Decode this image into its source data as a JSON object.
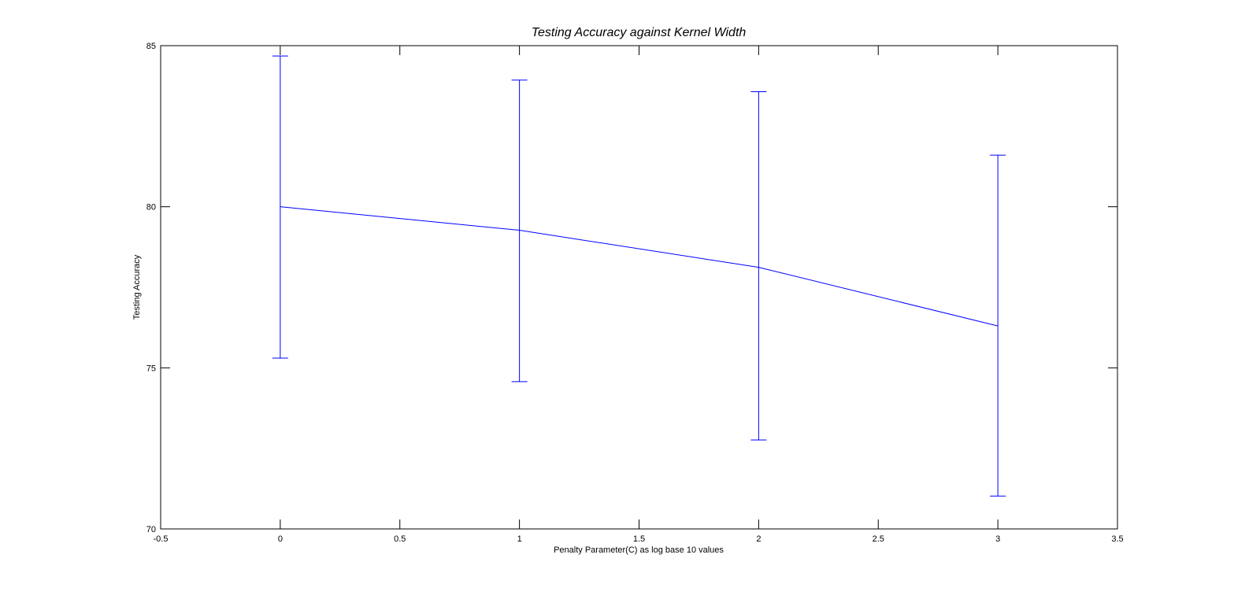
{
  "chart_data": {
    "type": "line",
    "title": "Testing Accuracy against Kernel Width",
    "xlabel": "Penalty Parameter(C) as log base 10 values",
    "ylabel": "Testing Accuracy",
    "xlim": [
      -0.5,
      3.5
    ],
    "ylim": [
      70,
      85
    ],
    "x_ticks": [
      "-0.5",
      "0",
      "0.5",
      "1",
      "1.5",
      "2",
      "2.5",
      "3",
      "3.5"
    ],
    "y_ticks": [
      "70",
      "75",
      "80",
      "85"
    ],
    "grid": false,
    "series": [
      {
        "color": "#0000ff",
        "x": [
          0,
          1,
          2,
          3
        ],
        "y": [
          80.0,
          79.27,
          78.12,
          76.3
        ],
        "error_lower": [
          75.3,
          74.57,
          72.76,
          71.02
        ],
        "error_upper": [
          84.68,
          83.93,
          83.57,
          81.6
        ]
      }
    ]
  }
}
